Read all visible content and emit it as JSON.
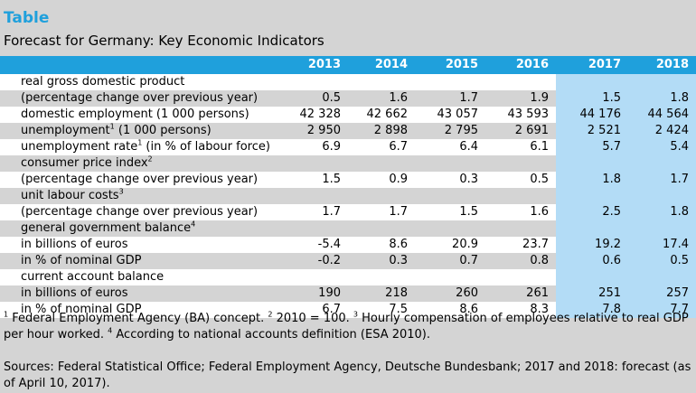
{
  "heading": "Table",
  "subtitle": "Forecast for Germany: Key Economic Indicators",
  "years": [
    "2013",
    "2014",
    "2015",
    "2016",
    "2017",
    "2018"
  ],
  "rows": [
    {
      "label": "real gross domestic product",
      "sup": "",
      "indent": 0,
      "values": []
    },
    {
      "label": "(percentage change over previous year)",
      "sup": "",
      "indent": 1,
      "values": [
        "0.5",
        "1.6",
        "1.7",
        "1.9",
        "1.5",
        "1.8"
      ]
    },
    {
      "label": "domestic employment (1 000 persons)",
      "sup": "",
      "indent": 0,
      "values": [
        "42 328",
        "42 662",
        "43 057",
        "43 593",
        "44 176",
        "44 564"
      ]
    },
    {
      "label": "unemployment",
      "sup": "1",
      "label2": " (1 000 persons)",
      "indent": 0,
      "values": [
        "2 950",
        "2 898",
        "2 795",
        "2 691",
        "2 521",
        "2 424"
      ]
    },
    {
      "label": "unemployment rate",
      "sup": "1",
      "label2": " (in % of labour force)",
      "indent": 0,
      "values": [
        "6.9",
        "6.7",
        "6.4",
        "6.1",
        "5.7",
        "5.4"
      ]
    },
    {
      "label": "consumer price index",
      "sup": "2",
      "indent": 0,
      "values": []
    },
    {
      "label": "(percentage change over previous year)",
      "sup": "",
      "indent": 1,
      "values": [
        "1.5",
        "0.9",
        "0.3",
        "0.5",
        "1.8",
        "1.7"
      ]
    },
    {
      "label": "unit labour costs",
      "sup": "3",
      "indent": 0,
      "values": []
    },
    {
      "label": "(percentage change over previous year)",
      "sup": "",
      "indent": 1,
      "values": [
        "1.7",
        "1.7",
        "1.5",
        "1.6",
        "2.5",
        "1.8"
      ]
    },
    {
      "label": "general government balance",
      "sup": "4",
      "indent": 0,
      "values": []
    },
    {
      "label": "in billions of euros",
      "sup": "",
      "indent": 2,
      "values": [
        "-5.4",
        "8.6",
        "20.9",
        "23.7",
        "19.2",
        "17.4"
      ]
    },
    {
      "label": "in % of nominal GDP",
      "sup": "",
      "indent": 2,
      "values": [
        "-0.2",
        "0.3",
        "0.7",
        "0.8",
        "0.6",
        "0.5"
      ]
    },
    {
      "label": "current account balance",
      "sup": "",
      "indent": 0,
      "values": []
    },
    {
      "label": "in billions of euros",
      "sup": "",
      "indent": 2,
      "values": [
        "190",
        "218",
        "260",
        "261",
        "251",
        "257"
      ]
    },
    {
      "label": "in % of nominal GDP",
      "sup": "",
      "indent": 2,
      "values": [
        "6.7",
        "7.5",
        "8.6",
        "8.3",
        "7.8",
        "7.7"
      ]
    }
  ],
  "footnotes": [
    {
      "mark": "1",
      "text": " Federal Employment Agency (BA) concept. "
    },
    {
      "mark": "2",
      "text": " 2010 = 100. "
    },
    {
      "mark": "3",
      "text": " Hourly compensation of employees relative to real GDP per hour worked. "
    },
    {
      "mark": "4",
      "text": " According to national accounts definition (ESA 2010)."
    }
  ],
  "sources": "Sources: Federal Statistical Office; Federal Employment Agency, Deutsche Bundesbank; 2017 and 2018: forecast (as of April 10, 2017).",
  "colors": {
    "accent": "#1fa0dc",
    "forecast_cell": "#b3dcf6",
    "row_alt": "#d4d4d4"
  }
}
